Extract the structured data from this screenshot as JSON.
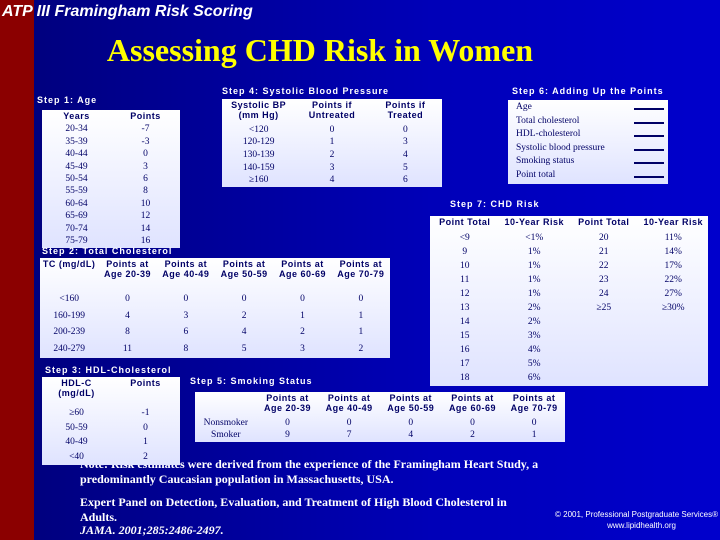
{
  "header": {
    "title": "ATP III Framingham Risk Scoring",
    "main_title": "Assessing CHD Risk in Women"
  },
  "step1": {
    "title": "Step 1: Age",
    "headers": [
      "Years",
      "Points"
    ],
    "rows": [
      [
        "20-34",
        "-7"
      ],
      [
        "35-39",
        "-3"
      ],
      [
        "40-44",
        "0"
      ],
      [
        "45-49",
        "3"
      ],
      [
        "50-54",
        "6"
      ],
      [
        "55-59",
        "8"
      ],
      [
        "60-64",
        "10"
      ],
      [
        "65-69",
        "12"
      ],
      [
        "70-74",
        "14"
      ],
      [
        "75-79",
        "16"
      ]
    ]
  },
  "step2": {
    "title": "Step 2: Total Cholesterol",
    "headers": [
      "TC (mg/dL)",
      "Points at Age 20-39",
      "Points at Age 40-49",
      "Points at Age 50-59",
      "Points at Age 60-69",
      "Points at Age 70-79"
    ],
    "rows": [
      [
        "<160",
        "0",
        "0",
        "0",
        "0",
        "0"
      ],
      [
        "160-199",
        "4",
        "3",
        "2",
        "1",
        "1"
      ],
      [
        "200-239",
        "8",
        "6",
        "4",
        "2",
        "1"
      ],
      [
        "240-279",
        "11",
        "8",
        "5",
        "3",
        "2"
      ]
    ]
  },
  "step3": {
    "title": "Step 3: HDL-Cholesterol",
    "headers": [
      "HDL-C (mg/dL)",
      "Points"
    ],
    "rows": [
      [
        "≥60",
        "-1"
      ],
      [
        "50-59",
        "0"
      ],
      [
        "40-49",
        "1"
      ],
      [
        "<40",
        "2"
      ]
    ]
  },
  "step4": {
    "title": "Step 4: Systolic Blood Pressure",
    "headers": [
      "Systolic BP (mm Hg)",
      "Points if Untreated",
      "Points if Treated"
    ],
    "rows": [
      [
        "<120",
        "0",
        "0"
      ],
      [
        "120-129",
        "1",
        "3"
      ],
      [
        "130-139",
        "2",
        "4"
      ],
      [
        "140-159",
        "3",
        "5"
      ],
      [
        "≥160",
        "4",
        "6"
      ]
    ]
  },
  "step5": {
    "title": "Step 5: Smoking Status",
    "headers": [
      "Points at Age 20-39",
      "Points at Age 40-49",
      "Points at Age 50-59",
      "Points at Age 60-69",
      "Points at Age 70-79"
    ],
    "rows": [
      [
        "Nonsmoker",
        "0",
        "0",
        "0",
        "0",
        "0"
      ],
      [
        "Smoker",
        "9",
        "7",
        "4",
        "2",
        "1"
      ]
    ]
  },
  "step6": {
    "title": "Step 6: Adding Up the Points",
    "items": [
      "Age",
      "Total cholesterol",
      "HDL-cholesterol",
      "Systolic blood pressure",
      "Smoking status",
      "Point total"
    ]
  },
  "step7": {
    "title": "Step 7: CHD Risk",
    "headers": [
      "Point Total",
      "10-Year Risk",
      "Point Total",
      "10-Year Risk"
    ],
    "rows": [
      [
        "<9",
        "<1%",
        "20",
        "11%"
      ],
      [
        "9",
        "1%",
        "21",
        "14%"
      ],
      [
        "10",
        "1%",
        "22",
        "17%"
      ],
      [
        "11",
        "1%",
        "23",
        "22%"
      ],
      [
        "12",
        "1%",
        "24",
        "27%"
      ],
      [
        "13",
        "2%",
        "≥25",
        "≥30%"
      ],
      [
        "14",
        "2%"
      ],
      [
        "15",
        "3%"
      ],
      [
        "16",
        "4%"
      ],
      [
        "17",
        "5%"
      ],
      [
        "18",
        "6%"
      ]
    ]
  },
  "footer": {
    "note": "Note: Risk estimates were derived from the experience of the Framingham Heart Study, a predominantly Caucasian population in Massachusetts, USA.",
    "source": "Expert Panel on Detection, Evaluation, and Treatment of High Blood Cholesterol in Adults.",
    "citation": "JAMA. 2001;285:2486-2497.",
    "copyright": "© 2001, Professional Postgraduate Services®",
    "website": "www.lipidhealth.org"
  }
}
